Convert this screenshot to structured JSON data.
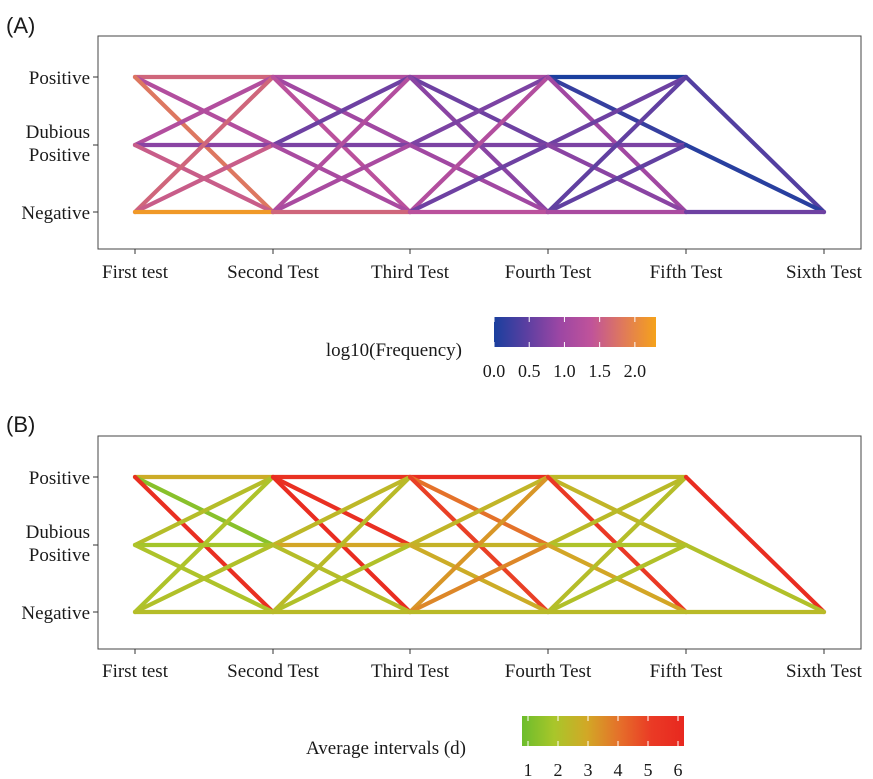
{
  "chart_data": [
    {
      "type": "line",
      "panel_label": "(A)",
      "x_categories": [
        "First test",
        "Second Test",
        "Third Test",
        "Fourth Test",
        "Fifth Test",
        "Sixth Test"
      ],
      "y_categories": [
        "Negative",
        "Dubious\nPositive",
        "Positive"
      ],
      "y_tick_lines": [
        [
          "Positive"
        ],
        [
          "Dubious",
          "Positive"
        ],
        [
          "Negative"
        ]
      ],
      "legend": {
        "title": "log10(Frequency)",
        "ticks": [
          "0.0",
          "0.5",
          "1.0",
          "1.5",
          "2.0"
        ],
        "tick_values": [
          0,
          0.5,
          1.0,
          1.5,
          2.0
        ],
        "range": [
          0,
          2.3
        ],
        "colors": [
          "#1a3f9e",
          "#5b3fa1",
          "#9b46a4",
          "#c0539a",
          "#e07a5a",
          "#f5a21a"
        ]
      },
      "segments": [
        {
          "from_test": 0,
          "from": "Positive",
          "to": "Positive",
          "value": 1.6
        },
        {
          "from_test": 0,
          "from": "Positive",
          "to": "Dubious Positive",
          "value": 1.2
        },
        {
          "from_test": 0,
          "from": "Positive",
          "to": "Negative",
          "value": 1.8
        },
        {
          "from_test": 0,
          "from": "Dubious Positive",
          "to": "Positive",
          "value": 1.2
        },
        {
          "from_test": 0,
          "from": "Dubious Positive",
          "to": "Dubious Positive",
          "value": 0.8
        },
        {
          "from_test": 0,
          "from": "Dubious Positive",
          "to": "Negative",
          "value": 1.5
        },
        {
          "from_test": 0,
          "from": "Negative",
          "to": "Positive",
          "value": 1.6
        },
        {
          "from_test": 0,
          "from": "Negative",
          "to": "Dubious Positive",
          "value": 1.5
        },
        {
          "from_test": 0,
          "from": "Negative",
          "to": "Negative",
          "value": 2.2
        },
        {
          "from_test": 1,
          "from": "Positive",
          "to": "Positive",
          "value": 1.2
        },
        {
          "from_test": 1,
          "from": "Positive",
          "to": "Dubious Positive",
          "value": 1.0
        },
        {
          "from_test": 1,
          "from": "Positive",
          "to": "Negative",
          "value": 1.3
        },
        {
          "from_test": 1,
          "from": "Dubious Positive",
          "to": "Positive",
          "value": 0.6
        },
        {
          "from_test": 1,
          "from": "Dubious Positive",
          "to": "Dubious Positive",
          "value": 0.7
        },
        {
          "from_test": 1,
          "from": "Dubious Positive",
          "to": "Negative",
          "value": 1.1
        },
        {
          "from_test": 1,
          "from": "Negative",
          "to": "Positive",
          "value": 1.2
        },
        {
          "from_test": 1,
          "from": "Negative",
          "to": "Dubious Positive",
          "value": 1.1
        },
        {
          "from_test": 1,
          "from": "Negative",
          "to": "Negative",
          "value": 1.6
        },
        {
          "from_test": 2,
          "from": "Positive",
          "to": "Positive",
          "value": 1.1
        },
        {
          "from_test": 2,
          "from": "Positive",
          "to": "Dubious Positive",
          "value": 0.6
        },
        {
          "from_test": 2,
          "from": "Positive",
          "to": "Negative",
          "value": 0.8
        },
        {
          "from_test": 2,
          "from": "Dubious Positive",
          "to": "Positive",
          "value": 0.7
        },
        {
          "from_test": 2,
          "from": "Dubious Positive",
          "to": "Dubious Positive",
          "value": 0.7
        },
        {
          "from_test": 2,
          "from": "Dubious Positive",
          "to": "Negative",
          "value": 1.0
        },
        {
          "from_test": 2,
          "from": "Negative",
          "to": "Positive",
          "value": 1.2
        },
        {
          "from_test": 2,
          "from": "Negative",
          "to": "Dubious Positive",
          "value": 0.6
        },
        {
          "from_test": 2,
          "from": "Negative",
          "to": "Negative",
          "value": 1.3
        },
        {
          "from_test": 3,
          "from": "Positive",
          "to": "Positive",
          "value": 0.0
        },
        {
          "from_test": 3,
          "from": "Positive",
          "to": "Dubious Positive",
          "value": 0.2
        },
        {
          "from_test": 3,
          "from": "Positive",
          "to": "Negative",
          "value": 1.0
        },
        {
          "from_test": 3,
          "from": "Dubious Positive",
          "to": "Positive",
          "value": 0.6
        },
        {
          "from_test": 3,
          "from": "Dubious Positive",
          "to": "Dubious Positive",
          "value": 0.7
        },
        {
          "from_test": 3,
          "from": "Dubious Positive",
          "to": "Negative",
          "value": 0.8
        },
        {
          "from_test": 3,
          "from": "Negative",
          "to": "Positive",
          "value": 0.5
        },
        {
          "from_test": 3,
          "from": "Negative",
          "to": "Dubious Positive",
          "value": 0.5
        },
        {
          "from_test": 3,
          "from": "Negative",
          "to": "Negative",
          "value": 1.1
        },
        {
          "from_test": 4,
          "from": "Positive",
          "to": "Negative",
          "value": 0.4
        },
        {
          "from_test": 4,
          "from": "Dubious Positive",
          "to": "Negative",
          "value": 0.1
        },
        {
          "from_test": 4,
          "from": "Negative",
          "to": "Negative",
          "value": 0.6
        }
      ]
    },
    {
      "type": "line",
      "panel_label": "(B)",
      "x_categories": [
        "First test",
        "Second Test",
        "Third Test",
        "Fourth Test",
        "Fifth Test",
        "Sixth Test"
      ],
      "y_categories": [
        "Negative",
        "Dubious\nPositive",
        "Positive"
      ],
      "y_tick_lines": [
        [
          "Positive"
        ],
        [
          "Dubious",
          "Positive"
        ],
        [
          "Negative"
        ]
      ],
      "legend": {
        "title": "Average intervals (d)",
        "ticks": [
          "1",
          "2",
          "3",
          "4",
          "5",
          "6"
        ],
        "tick_values": [
          1,
          2,
          3,
          4,
          5,
          6
        ],
        "range": [
          0.8,
          6.2
        ],
        "colors": [
          "#6cbd2c",
          "#a9c62a",
          "#d2a826",
          "#e5702a",
          "#ea3a25",
          "#e8281f"
        ]
      },
      "segments": [
        {
          "from_test": 0,
          "from": "Positive",
          "to": "Positive",
          "value": 2.8
        },
        {
          "from_test": 0,
          "from": "Positive",
          "to": "Dubious Positive",
          "value": 1.3
        },
        {
          "from_test": 0,
          "from": "Positive",
          "to": "Negative",
          "value": 5.8
        },
        {
          "from_test": 0,
          "from": "Dubious Positive",
          "to": "Positive",
          "value": 2.2
        },
        {
          "from_test": 0,
          "from": "Dubious Positive",
          "to": "Dubious Positive",
          "value": 1.8
        },
        {
          "from_test": 0,
          "from": "Dubious Positive",
          "to": "Negative",
          "value": 2.0
        },
        {
          "from_test": 0,
          "from": "Negative",
          "to": "Positive",
          "value": 2.0
        },
        {
          "from_test": 0,
          "from": "Negative",
          "to": "Dubious Positive",
          "value": 2.1
        },
        {
          "from_test": 0,
          "from": "Negative",
          "to": "Negative",
          "value": 2.2
        },
        {
          "from_test": 1,
          "from": "Positive",
          "to": "Positive",
          "value": 5.6
        },
        {
          "from_test": 1,
          "from": "Positive",
          "to": "Dubious Positive",
          "value": 5.7
        },
        {
          "from_test": 1,
          "from": "Positive",
          "to": "Negative",
          "value": 5.9
        },
        {
          "from_test": 1,
          "from": "Dubious Positive",
          "to": "Positive",
          "value": 2.4
        },
        {
          "from_test": 1,
          "from": "Dubious Positive",
          "to": "Dubious Positive",
          "value": 3.0
        },
        {
          "from_test": 1,
          "from": "Dubious Positive",
          "to": "Negative",
          "value": 2.2
        },
        {
          "from_test": 1,
          "from": "Negative",
          "to": "Positive",
          "value": 2.3
        },
        {
          "from_test": 1,
          "from": "Negative",
          "to": "Dubious Positive",
          "value": 2.1
        },
        {
          "from_test": 1,
          "from": "Negative",
          "to": "Negative",
          "value": 2.3
        },
        {
          "from_test": 2,
          "from": "Positive",
          "to": "Positive",
          "value": 5.9
        },
        {
          "from_test": 2,
          "from": "Positive",
          "to": "Dubious Positive",
          "value": 4.0
        },
        {
          "from_test": 2,
          "from": "Positive",
          "to": "Negative",
          "value": 5.0
        },
        {
          "from_test": 2,
          "from": "Dubious Positive",
          "to": "Positive",
          "value": 2.5
        },
        {
          "from_test": 2,
          "from": "Dubious Positive",
          "to": "Dubious Positive",
          "value": 2.6
        },
        {
          "from_test": 2,
          "from": "Dubious Positive",
          "to": "Negative",
          "value": 2.8
        },
        {
          "from_test": 2,
          "from": "Negative",
          "to": "Positive",
          "value": 3.3
        },
        {
          "from_test": 2,
          "from": "Negative",
          "to": "Dubious Positive",
          "value": 3.6
        },
        {
          "from_test": 2,
          "from": "Negative",
          "to": "Negative",
          "value": 2.3
        },
        {
          "from_test": 3,
          "from": "Positive",
          "to": "Positive",
          "value": 2.4
        },
        {
          "from_test": 3,
          "from": "Positive",
          "to": "Dubious Positive",
          "value": 2.5
        },
        {
          "from_test": 3,
          "from": "Positive",
          "to": "Negative",
          "value": 5.2
        },
        {
          "from_test": 3,
          "from": "Dubious Positive",
          "to": "Positive",
          "value": 2.3
        },
        {
          "from_test": 3,
          "from": "Dubious Positive",
          "to": "Dubious Positive",
          "value": 2.0
        },
        {
          "from_test": 3,
          "from": "Dubious Positive",
          "to": "Negative",
          "value": 3.0
        },
        {
          "from_test": 3,
          "from": "Negative",
          "to": "Positive",
          "value": 2.2
        },
        {
          "from_test": 3,
          "from": "Negative",
          "to": "Dubious Positive",
          "value": 2.1
        },
        {
          "from_test": 3,
          "from": "Negative",
          "to": "Negative",
          "value": 2.3
        },
        {
          "from_test": 4,
          "from": "Positive",
          "to": "Negative",
          "value": 5.9
        },
        {
          "from_test": 4,
          "from": "Dubious Positive",
          "to": "Negative",
          "value": 2.1
        },
        {
          "from_test": 4,
          "from": "Negative",
          "to": "Negative",
          "value": 2.3
        }
      ]
    }
  ]
}
